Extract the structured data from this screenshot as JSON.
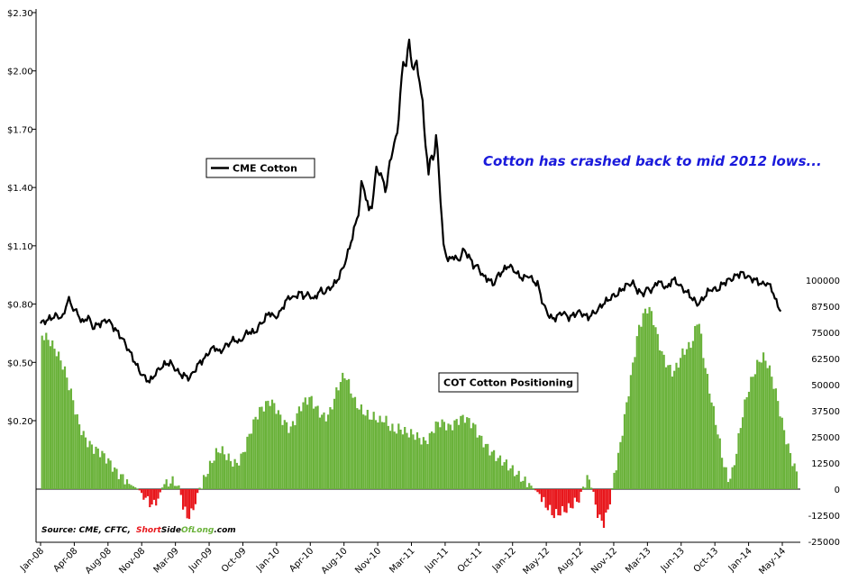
{
  "chart_data": {
    "type": "bar+line",
    "x_ticks": [
      "Jan-08",
      "Apr-08",
      "Aug-08",
      "Nov-08",
      "Mar-09",
      "Jun-09",
      "Oct-09",
      "Jan-10",
      "Apr-10",
      "Aug-10",
      "Nov-10",
      "Mar-11",
      "Jun-11",
      "Oct-11",
      "Jan-12",
      "May-12",
      "Aug-12",
      "Nov-12",
      "Mar-13",
      "Jun-13",
      "Oct-13",
      "Jan-14",
      "May-14"
    ],
    "y_left_ticks": [
      "$0.20",
      "$0.50",
      "$0.80",
      "$1.10",
      "$1.40",
      "$1.70",
      "$2.00",
      "$2.30"
    ],
    "y_left_range": [
      -0.55,
      2.3
    ],
    "y_right_ticks": [
      "-25000",
      "-12500",
      "0",
      "12500",
      "25000",
      "37500",
      "50000",
      "62500",
      "75000",
      "87500",
      "100000"
    ],
    "y_right_range": [
      -25000,
      100000
    ],
    "line_series": {
      "name": "CME Cotton",
      "color": "#000000",
      "points": [
        [
          0,
          0.7
        ],
        [
          0.3,
          0.72
        ],
        [
          0.6,
          0.74
        ],
        [
          0.9,
          0.73
        ],
        [
          1.1,
          0.83
        ],
        [
          1.3,
          0.78
        ],
        [
          1.5,
          0.75
        ],
        [
          1.7,
          0.7
        ],
        [
          1.9,
          0.74
        ],
        [
          2.1,
          0.68
        ],
        [
          2.4,
          0.7
        ],
        [
          2.7,
          0.72
        ],
        [
          3.0,
          0.67
        ],
        [
          3.3,
          0.62
        ],
        [
          3.6,
          0.55
        ],
        [
          3.8,
          0.5
        ],
        [
          4.0,
          0.45
        ],
        [
          4.2,
          0.42
        ],
        [
          4.4,
          0.4
        ],
        [
          4.6,
          0.44
        ],
        [
          4.8,
          0.47
        ],
        [
          5.0,
          0.49
        ],
        [
          5.2,
          0.5
        ],
        [
          5.4,
          0.47
        ],
        [
          5.6,
          0.44
        ],
        [
          5.8,
          0.43
        ],
        [
          6.0,
          0.42
        ],
        [
          6.2,
          0.46
        ],
        [
          6.4,
          0.5
        ],
        [
          6.6,
          0.52
        ],
        [
          6.8,
          0.56
        ],
        [
          7.0,
          0.58
        ],
        [
          7.2,
          0.55
        ],
        [
          7.4,
          0.58
        ],
        [
          7.6,
          0.6
        ],
        [
          7.8,
          0.62
        ],
        [
          8.0,
          0.6
        ],
        [
          8.2,
          0.64
        ],
        [
          8.4,
          0.66
        ],
        [
          8.6,
          0.65
        ],
        [
          8.8,
          0.69
        ],
        [
          9.0,
          0.72
        ],
        [
          9.2,
          0.76
        ],
        [
          9.4,
          0.73
        ],
        [
          9.6,
          0.75
        ],
        [
          9.8,
          0.8
        ],
        [
          10.0,
          0.84
        ],
        [
          10.2,
          0.83
        ],
        [
          10.4,
          0.86
        ],
        [
          10.6,
          0.84
        ],
        [
          10.8,
          0.85
        ],
        [
          11.0,
          0.82
        ],
        [
          11.2,
          0.87
        ],
        [
          11.4,
          0.86
        ],
        [
          11.6,
          0.88
        ],
        [
          11.8,
          0.9
        ],
        [
          12.0,
          0.94
        ],
        [
          12.2,
          1.0
        ],
        [
          12.4,
          1.08
        ],
        [
          12.6,
          1.18
        ],
        [
          12.8,
          1.28
        ],
        [
          12.9,
          1.42
        ],
        [
          13.0,
          1.4
        ],
        [
          13.2,
          1.28
        ],
        [
          13.35,
          1.32
        ],
        [
          13.5,
          1.5
        ],
        [
          13.7,
          1.46
        ],
        [
          13.9,
          1.38
        ],
        [
          14.0,
          1.5
        ],
        [
          14.2,
          1.62
        ],
        [
          14.35,
          1.68
        ],
        [
          14.5,
          1.95
        ],
        [
          14.6,
          2.05
        ],
        [
          14.7,
          2.03
        ],
        [
          14.8,
          2.17
        ],
        [
          14.9,
          2.05
        ],
        [
          15.0,
          2.01
        ],
        [
          15.1,
          2.05
        ],
        [
          15.2,
          1.98
        ],
        [
          15.35,
          1.85
        ],
        [
          15.45,
          1.65
        ],
        [
          15.55,
          1.55
        ],
        [
          15.6,
          1.46
        ],
        [
          15.7,
          1.58
        ],
        [
          15.8,
          1.54
        ],
        [
          15.9,
          1.65
        ],
        [
          15.95,
          1.62
        ],
        [
          16.05,
          1.4
        ],
        [
          16.2,
          1.1
        ],
        [
          16.4,
          1.02
        ],
        [
          16.6,
          1.05
        ],
        [
          16.8,
          1.02
        ],
        [
          17.0,
          1.08
        ],
        [
          17.2,
          1.05
        ],
        [
          17.4,
          1.0
        ],
        [
          17.6,
          0.99
        ],
        [
          17.8,
          0.94
        ],
        [
          18.0,
          0.93
        ],
        [
          18.2,
          0.9
        ],
        [
          18.4,
          0.95
        ],
        [
          18.6,
          0.97
        ],
        [
          18.8,
          1.0
        ],
        [
          19.0,
          0.98
        ],
        [
          19.2,
          0.95
        ],
        [
          19.4,
          0.93
        ],
        [
          19.6,
          0.95
        ],
        [
          19.8,
          0.92
        ],
        [
          20.0,
          0.9
        ],
        [
          20.2,
          0.8
        ],
        [
          20.4,
          0.75
        ],
        [
          20.6,
          0.72
        ],
        [
          20.8,
          0.74
        ],
        [
          21.0,
          0.76
        ],
        [
          21.2,
          0.73
        ],
        [
          21.4,
          0.74
        ],
        [
          21.6,
          0.76
        ],
        [
          21.8,
          0.75
        ],
        [
          22.0,
          0.73
        ],
        [
          22.2,
          0.75
        ],
        [
          22.4,
          0.77
        ],
        [
          22.6,
          0.8
        ],
        [
          22.8,
          0.82
        ],
        [
          23.0,
          0.84
        ],
        [
          23.2,
          0.85
        ],
        [
          23.4,
          0.88
        ],
        [
          23.6,
          0.9
        ],
        [
          23.8,
          0.91
        ],
        [
          24.0,
          0.87
        ],
        [
          24.2,
          0.85
        ],
        [
          24.4,
          0.88
        ],
        [
          24.6,
          0.87
        ],
        [
          24.8,
          0.92
        ],
        [
          25.0,
          0.9
        ],
        [
          25.2,
          0.88
        ],
        [
          25.4,
          0.93
        ],
        [
          25.6,
          0.91
        ],
        [
          25.8,
          0.88
        ],
        [
          26.0,
          0.86
        ],
        [
          26.2,
          0.83
        ],
        [
          26.4,
          0.8
        ],
        [
          26.6,
          0.82
        ],
        [
          26.8,
          0.86
        ],
        [
          27.0,
          0.88
        ],
        [
          27.2,
          0.87
        ],
        [
          27.4,
          0.9
        ],
        [
          27.6,
          0.92
        ],
        [
          27.8,
          0.93
        ],
        [
          28.0,
          0.95
        ],
        [
          28.2,
          0.96
        ],
        [
          28.4,
          0.94
        ],
        [
          28.6,
          0.93
        ],
        [
          28.8,
          0.92
        ],
        [
          29.0,
          0.9
        ],
        [
          29.2,
          0.91
        ],
        [
          29.4,
          0.88
        ],
        [
          29.6,
          0.8
        ],
        [
          29.8,
          0.76
        ]
      ]
    },
    "bar_series": {
      "name": "COT Cotton Positioning",
      "positive_color": "#6ab23a",
      "negative_color": "#e8161b",
      "points": [
        [
          0,
          75000
        ],
        [
          0.3,
          72000
        ],
        [
          0.6,
          66000
        ],
        [
          0.9,
          58000
        ],
        [
          1.2,
          45000
        ],
        [
          1.5,
          30000
        ],
        [
          1.8,
          22000
        ],
        [
          2.1,
          18000
        ],
        [
          2.4,
          16000
        ],
        [
          2.7,
          12000
        ],
        [
          3.0,
          7000
        ],
        [
          3.3,
          4000
        ],
        [
          3.6,
          2000
        ],
        [
          3.9,
          0
        ],
        [
          4.1,
          -3000
        ],
        [
          4.3,
          -6000
        ],
        [
          4.5,
          -7500
        ],
        [
          4.7,
          -3500
        ],
        [
          4.9,
          2000
        ],
        [
          5.1,
          4000
        ],
        [
          5.3,
          5000
        ],
        [
          5.5,
          3000
        ],
        [
          5.7,
          -8000
        ],
        [
          5.9,
          -12000
        ],
        [
          6.0,
          -11000
        ],
        [
          6.2,
          -4000
        ],
        [
          6.4,
          2000
        ],
        [
          6.6,
          8000
        ],
        [
          6.8,
          13000
        ],
        [
          7.0,
          18000
        ],
        [
          7.2,
          20000
        ],
        [
          7.4,
          17000
        ],
        [
          7.6,
          14000
        ],
        [
          7.8,
          12000
        ],
        [
          8.0,
          14000
        ],
        [
          8.2,
          20000
        ],
        [
          8.4,
          27000
        ],
        [
          8.6,
          33000
        ],
        [
          8.8,
          37000
        ],
        [
          9.0,
          39000
        ],
        [
          9.2,
          41000
        ],
        [
          9.4,
          38000
        ],
        [
          9.6,
          33000
        ],
        [
          9.8,
          30000
        ],
        [
          10.0,
          27000
        ],
        [
          10.2,
          32000
        ],
        [
          10.4,
          38000
        ],
        [
          10.6,
          41000
        ],
        [
          10.8,
          43000
        ],
        [
          11.0,
          39000
        ],
        [
          11.2,
          36000
        ],
        [
          11.4,
          34000
        ],
        [
          11.6,
          37000
        ],
        [
          11.8,
          45000
        ],
        [
          12.0,
          52000
        ],
        [
          12.2,
          56000
        ],
        [
          12.4,
          50000
        ],
        [
          12.6,
          43000
        ],
        [
          12.8,
          40000
        ],
        [
          13.0,
          38000
        ],
        [
          13.2,
          36000
        ],
        [
          13.4,
          36000
        ],
        [
          13.6,
          34000
        ],
        [
          13.8,
          35000
        ],
        [
          14.0,
          31000
        ],
        [
          14.2,
          29000
        ],
        [
          14.4,
          30000
        ],
        [
          14.6,
          28000
        ],
        [
          14.8,
          27000
        ],
        [
          15.0,
          26000
        ],
        [
          15.2,
          24000
        ],
        [
          15.4,
          22000
        ],
        [
          15.6,
          24000
        ],
        [
          15.8,
          29000
        ],
        [
          16.0,
          31000
        ],
        [
          16.2,
          30000
        ],
        [
          16.4,
          28000
        ],
        [
          16.6,
          30000
        ],
        [
          16.8,
          32000
        ],
        [
          17.0,
          33000
        ],
        [
          17.2,
          31000
        ],
        [
          17.4,
          29000
        ],
        [
          17.6,
          24000
        ],
        [
          17.8,
          21000
        ],
        [
          18.0,
          18000
        ],
        [
          18.2,
          16000
        ],
        [
          18.4,
          14000
        ],
        [
          18.6,
          13000
        ],
        [
          18.8,
          11000
        ],
        [
          19.0,
          9000
        ],
        [
          19.2,
          7000
        ],
        [
          19.4,
          5000
        ],
        [
          19.6,
          3000
        ],
        [
          19.8,
          0
        ],
        [
          20.0,
          -2000
        ],
        [
          20.2,
          -5000
        ],
        [
          20.4,
          -8000
        ],
        [
          20.6,
          -11000
        ],
        [
          20.8,
          -10000
        ],
        [
          21.0,
          -9000
        ],
        [
          21.2,
          -8000
        ],
        [
          21.4,
          -6000
        ],
        [
          21.6,
          -4000
        ],
        [
          21.8,
          2000
        ],
        [
          22.0,
          6000
        ],
        [
          22.2,
          -4000
        ],
        [
          22.4,
          -14000
        ],
        [
          22.6,
          -17000
        ],
        [
          22.8,
          -10000
        ],
        [
          23.0,
          5000
        ],
        [
          23.2,
          15000
        ],
        [
          23.4,
          30000
        ],
        [
          23.6,
          45000
        ],
        [
          23.8,
          60000
        ],
        [
          24.0,
          75000
        ],
        [
          24.2,
          82000
        ],
        [
          24.4,
          86000
        ],
        [
          24.6,
          80000
        ],
        [
          24.8,
          70000
        ],
        [
          25.0,
          62000
        ],
        [
          25.2,
          58000
        ],
        [
          25.4,
          55000
        ],
        [
          25.6,
          60000
        ],
        [
          25.8,
          66000
        ],
        [
          26.0,
          68000
        ],
        [
          26.2,
          72000
        ],
        [
          26.4,
          84000
        ],
        [
          26.6,
          66000
        ],
        [
          26.8,
          52000
        ],
        [
          27.0,
          40000
        ],
        [
          27.2,
          28000
        ],
        [
          27.4,
          15000
        ],
        [
          27.6,
          6000
        ],
        [
          27.8,
          10000
        ],
        [
          28.0,
          24000
        ],
        [
          28.2,
          38000
        ],
        [
          28.4,
          48000
        ],
        [
          28.6,
          55000
        ],
        [
          28.8,
          61000
        ],
        [
          29.0,
          64000
        ],
        [
          29.2,
          60000
        ],
        [
          29.4,
          52000
        ],
        [
          29.6,
          42000
        ],
        [
          29.8,
          30000
        ],
        [
          30.0,
          20000
        ],
        [
          30.2,
          12000
        ],
        [
          30.4,
          5000
        ]
      ]
    },
    "legend_line_label": "CME Cotton",
    "legend_bar_label": "COT Cotton Positioning",
    "annotation": "Cotton has crashed back to mid 2012 lows...",
    "source_prefix": "Source: CME, CFTC,",
    "source_brand_1": "Short",
    "source_brand_2": "Side",
    "source_brand_3": "Of",
    "source_brand_4": "Long",
    "source_brand_5": ".com",
    "brand_colors": [
      "#e8161b",
      "#000000",
      "#6ab23a"
    ]
  }
}
